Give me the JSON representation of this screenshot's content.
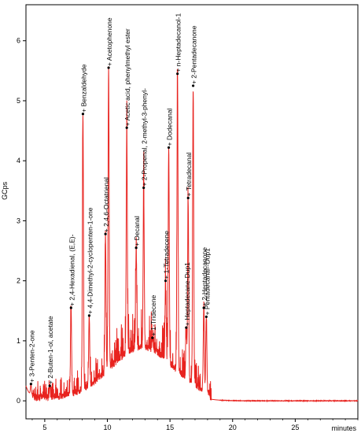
{
  "chart_data": {
    "type": "line",
    "title": "",
    "xlabel": "minutes",
    "ylabel": "GCps",
    "xlim": [
      3.5,
      30
    ],
    "ylim": [
      -0.3,
      6.6
    ],
    "x_ticks": [
      5,
      10,
      15,
      20,
      25
    ],
    "y_ticks": [
      0,
      1,
      2,
      3,
      4,
      5,
      6
    ],
    "grid": false,
    "line_color": "#e8231f",
    "series": [
      {
        "peaks": [
          {
            "label": "3-Penten-2-one",
            "rt": 3.9,
            "height": 0.28
          },
          {
            "label": "2-Buten-1-ol, acetate",
            "rt": 5.4,
            "height": 0.25
          },
          {
            "label": "2,4-Hexadienal, (E,E)-",
            "rt": 7.1,
            "height": 1.55
          },
          {
            "label": "Benzaldehyde",
            "rt": 8.05,
            "height": 4.78
          },
          {
            "label": "4,4-Dimethyl-2-cyclopenten-1-one",
            "rt": 8.55,
            "height": 1.42
          },
          {
            "label": "2,4,6-Octatrienal",
            "rt": 9.85,
            "height": 2.78
          },
          {
            "label": "Acetophenone",
            "rt": 10.1,
            "height": 5.55
          },
          {
            "label": "Acetic acid, phenylmethyl ester",
            "rt": 11.55,
            "height": 4.55
          },
          {
            "label": "Decanal",
            "rt": 12.3,
            "height": 2.55
          },
          {
            "label": "2-Propenal, 2-methyl-3-phenyl-",
            "rt": 12.9,
            "height": 3.55
          },
          {
            "label": "1-Tridecene",
            "rt": 13.6,
            "height": 1.05
          },
          {
            "label": "1-Tetradecene",
            "rt": 14.65,
            "height": 2.0
          },
          {
            "label": "Dodecanal",
            "rt": 14.9,
            "height": 4.22
          },
          {
            "label": "n-Heptadecanol-1",
            "rt": 15.6,
            "height": 5.45
          },
          {
            "label": "Heptadecane-Dup1",
            "rt": 16.3,
            "height": 1.22
          },
          {
            "label": "Tetradecanal",
            "rt": 16.45,
            "height": 3.38
          },
          {
            "label": "2-Pentadecanone",
            "rt": 16.85,
            "height": 5.25
          },
          {
            "label": "2-Heptadecanone",
            "rt": 17.7,
            "height": 1.55
          },
          {
            "label": "Pentadecanal--Dup1",
            "rt": 17.9,
            "height": 1.4
          }
        ]
      }
    ]
  }
}
